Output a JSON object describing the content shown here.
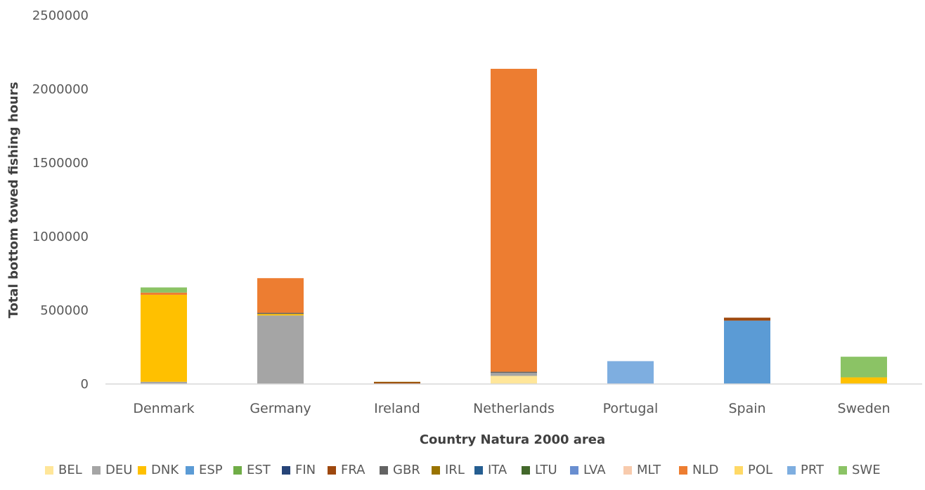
{
  "chart_data": {
    "type": "bar",
    "stacked": true,
    "title": "",
    "xlabel": "Country Natura 2000 area",
    "ylabel": "Total bottom towed fishing hours",
    "ylim": [
      0,
      2500000
    ],
    "yticks": [
      0,
      500000,
      1000000,
      1500000,
      2000000,
      2500000
    ],
    "ytick_labels": [
      "0",
      "500000",
      "1000000",
      "1500000",
      "2000000",
      "2500000"
    ],
    "grid": false,
    "legend_position": "bottom",
    "categories": [
      "Denmark",
      "Germany",
      "Ireland",
      "Netherlands",
      "Portugal",
      "Spain",
      "Sweden"
    ],
    "series": [
      {
        "name": "BEL",
        "color": "#FFE699",
        "values": [
          0,
          0,
          0,
          55000,
          0,
          0,
          0
        ]
      },
      {
        "name": "DEU",
        "color": "#A5A5A5",
        "values": [
          15000,
          465000,
          0,
          20000,
          0,
          0,
          0
        ]
      },
      {
        "name": "DNK",
        "color": "#FFC000",
        "values": [
          590000,
          10000,
          0,
          0,
          0,
          0,
          45000
        ]
      },
      {
        "name": "ESP",
        "color": "#5B9BD5",
        "values": [
          0,
          0,
          0,
          0,
          0,
          430000,
          0
        ]
      },
      {
        "name": "EST",
        "color": "#70AD47",
        "values": [
          0,
          0,
          0,
          0,
          0,
          0,
          0
        ]
      },
      {
        "name": "FIN",
        "color": "#264478",
        "values": [
          0,
          0,
          0,
          0,
          0,
          0,
          0
        ]
      },
      {
        "name": "FRA",
        "color": "#9E480E",
        "values": [
          0,
          0,
          12000,
          0,
          0,
          20000,
          0
        ]
      },
      {
        "name": "GBR",
        "color": "#636363",
        "values": [
          0,
          8000,
          0,
          8000,
          0,
          0,
          0
        ]
      },
      {
        "name": "IRL",
        "color": "#997300",
        "values": [
          0,
          0,
          3000,
          0,
          0,
          0,
          0
        ]
      },
      {
        "name": "ITA",
        "color": "#255E91",
        "values": [
          0,
          0,
          0,
          0,
          0,
          0,
          0
        ]
      },
      {
        "name": "LTU",
        "color": "#43682B",
        "values": [
          0,
          0,
          0,
          0,
          0,
          0,
          0
        ]
      },
      {
        "name": "LVA",
        "color": "#698ED0",
        "values": [
          0,
          0,
          0,
          0,
          0,
          0,
          0
        ]
      },
      {
        "name": "MLT",
        "color": "#F8CBAD",
        "values": [
          0,
          0,
          0,
          0,
          0,
          0,
          0
        ]
      },
      {
        "name": "NLD",
        "color": "#ED7D31",
        "values": [
          15000,
          235000,
          0,
          2055000,
          0,
          0,
          0
        ]
      },
      {
        "name": "POL",
        "color": "#FFD966",
        "values": [
          0,
          0,
          0,
          0,
          0,
          0,
          0
        ]
      },
      {
        "name": "PRT",
        "color": "#7EAEE0",
        "values": [
          0,
          0,
          0,
          0,
          155000,
          0,
          0
        ]
      },
      {
        "name": "SWE",
        "color": "#8BC365",
        "values": [
          35000,
          0,
          0,
          0,
          0,
          0,
          140000
        ]
      }
    ]
  }
}
